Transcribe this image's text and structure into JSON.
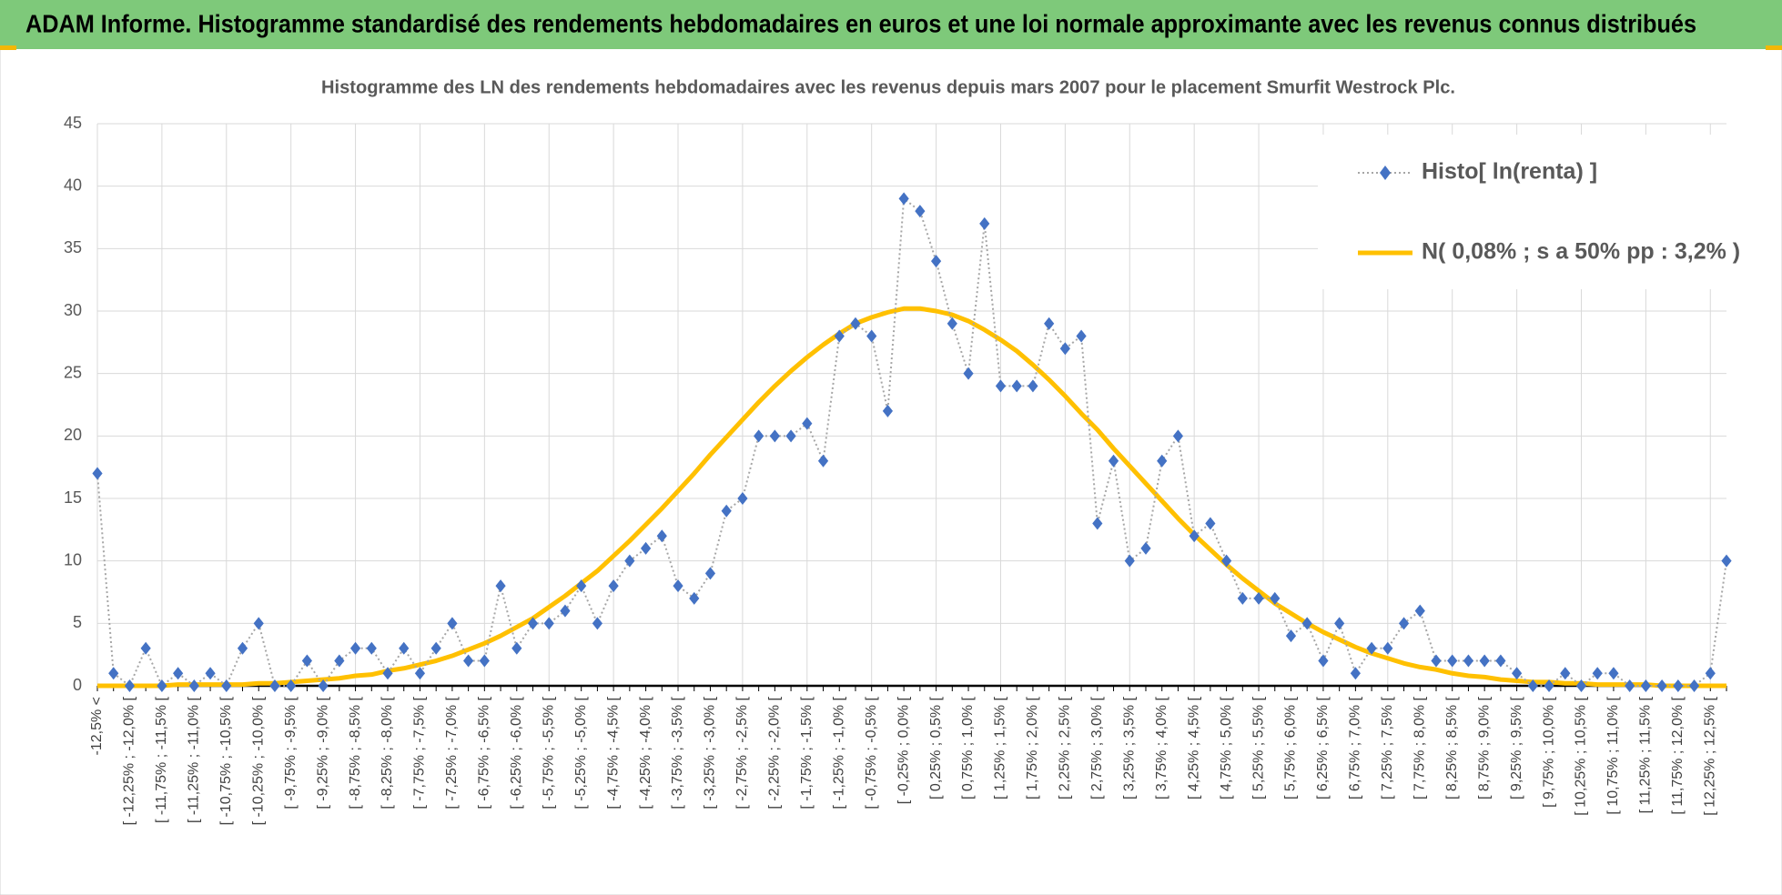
{
  "chart_data": {
    "type": "line",
    "title": "ADAM Informe. Histogramme standardisé des rendements hebdomadaires en euros et une loi normale approximante avec les revenus connus distribués",
    "subtitle": "Histogramme des LN des rendements hebdomadaires avec les revenus depuis mars 2007 pour le placement Smurfit Westrock Plc.",
    "categories": [
      "-12,5% <",
      null,
      "[ -12,25% ; -12,0% [",
      null,
      "[ -11,75% ; -11,5% [",
      null,
      "[ -11,25% ; -11,0% [",
      null,
      "[ -10,75% ; -10,5% [",
      null,
      "[ -10,25% ; -10,0% [",
      null,
      "[ -9,75% ; -9,5% [",
      null,
      "[ -9,25% ; -9,0% [",
      null,
      "[ -8,75% ; -8,5% [",
      null,
      "[ -8,25% ; -8,0% [",
      null,
      "[ -7,75% ; -7,5% [",
      null,
      "[ -7,25% ; -7,0% [",
      null,
      "[ -6,75% ; -6,5% [",
      null,
      "[ -6,25% ; -6,0% [",
      null,
      "[ -5,75% ; -5,5% [",
      null,
      "[ -5,25% ; -5,0% [",
      null,
      "[ -4,75% ; -4,5% [",
      null,
      "[ -4,25% ; -4,0% [",
      null,
      "[ -3,75% ; -3,5% [",
      null,
      "[ -3,25% ; -3,0% [",
      null,
      "[ -2,75% ; -2,5% [",
      null,
      "[ -2,25% ; -2,0% [",
      null,
      "[ -1,75% ; -1,5% [",
      null,
      "[ -1,25% ; -1,0% [",
      null,
      "[ -0,75% ; -0,5% [",
      null,
      "[ -0,25% ; 0,0% [",
      null,
      "[ 0,25% ; 0,5% [",
      null,
      "[ 0,75% ; 1,0% [",
      null,
      "[ 1,25% ; 1,5% [",
      null,
      "[ 1,75% ; 2,0% [",
      null,
      "[ 2,25% ; 2,5% [",
      null,
      "[ 2,75% ; 3,0% [",
      null,
      "[ 3,25% ; 3,5% [",
      null,
      "[ 3,75% ; 4,0% [",
      null,
      "[ 4,25% ; 4,5% [",
      null,
      "[ 4,75% ; 5,0% [",
      null,
      "[ 5,25% ; 5,5% [",
      null,
      "[ 5,75% ; 6,0% [",
      null,
      "[ 6,25% ; 6,5% [",
      null,
      "[ 6,75% ; 7,0% [",
      null,
      "[ 7,25% ; 7,5% [",
      null,
      "[ 7,75% ; 8,0% [",
      null,
      "[ 8,25% ; 8,5% [",
      null,
      "[ 8,75% ; 9,0% [",
      null,
      "[ 9,25% ; 9,5% [",
      null,
      "[ 9,75% ; 10,0% [",
      null,
      "[ 10,25% ; 10,5% [",
      null,
      "[ 10,75% ; 11,0% [",
      null,
      "[ 11,25% ; 11,5% [",
      null,
      "[ 11,75% ; 12,0% [",
      null,
      "[ 12,25% ; 12,5% [",
      null
    ],
    "series": [
      {
        "name": "Histo[ ln(renta) ]",
        "color": "#4472c4",
        "line_color": "#a6a6a6",
        "values": [
          17,
          1,
          0,
          3,
          0,
          1,
          0,
          1,
          0,
          3,
          5,
          0,
          0,
          2,
          0,
          2,
          3,
          3,
          1,
          3,
          1,
          3,
          5,
          2,
          2,
          8,
          3,
          5,
          5,
          6,
          8,
          5,
          8,
          10,
          11,
          12,
          8,
          7,
          9,
          14,
          15,
          20,
          20,
          20,
          21,
          18,
          28,
          29,
          28,
          22,
          39,
          38,
          34,
          29,
          25,
          37,
          24,
          24,
          24,
          29,
          27,
          28,
          13,
          18,
          10,
          11,
          18,
          20,
          12,
          13,
          10,
          7,
          7,
          7,
          4,
          5,
          2,
          5,
          1,
          3,
          3,
          5,
          6,
          2,
          2,
          2,
          2,
          2,
          1,
          0,
          0,
          1,
          0,
          1,
          1,
          0,
          0,
          0,
          0,
          0,
          1,
          10
        ]
      },
      {
        "name": "N( 0,08% ; s a 50% pp : 3,2% )",
        "color": "#ffc000",
        "values": [
          0,
          0,
          0,
          0,
          0,
          0.1,
          0.1,
          0.1,
          0.1,
          0.1,
          0.2,
          0.2,
          0.3,
          0.4,
          0.5,
          0.6,
          0.8,
          0.9,
          1.2,
          1.4,
          1.7,
          2.0,
          2.4,
          2.9,
          3.4,
          4.0,
          4.7,
          5.4,
          6.3,
          7.2,
          8.2,
          9.2,
          10.4,
          11.6,
          12.9,
          14.2,
          15.6,
          17.0,
          18.5,
          19.9,
          21.3,
          22.7,
          24.0,
          25.2,
          26.3,
          27.3,
          28.2,
          29.0,
          29.5,
          29.9,
          30.2,
          30.2,
          30.0,
          29.7,
          29.2,
          28.5,
          27.7,
          26.8,
          25.7,
          24.5,
          23.2,
          21.8,
          20.5,
          19.0,
          17.6,
          16.2,
          14.8,
          13.4,
          12.1,
          10.9,
          9.7,
          8.6,
          7.6,
          6.6,
          5.8,
          5.0,
          4.3,
          3.7,
          3.1,
          2.6,
          2.2,
          1.8,
          1.5,
          1.3,
          1.0,
          0.8,
          0.7,
          0.5,
          0.4,
          0.3,
          0.3,
          0.2,
          0.2,
          0.1,
          0.1,
          0.1,
          0.1,
          0,
          0,
          0,
          0,
          0
        ]
      }
    ],
    "ylim": [
      0,
      45
    ],
    "yticks": [
      0,
      5,
      10,
      15,
      20,
      25,
      30,
      35,
      40,
      45
    ],
    "grid": true,
    "legend": "upper right"
  }
}
